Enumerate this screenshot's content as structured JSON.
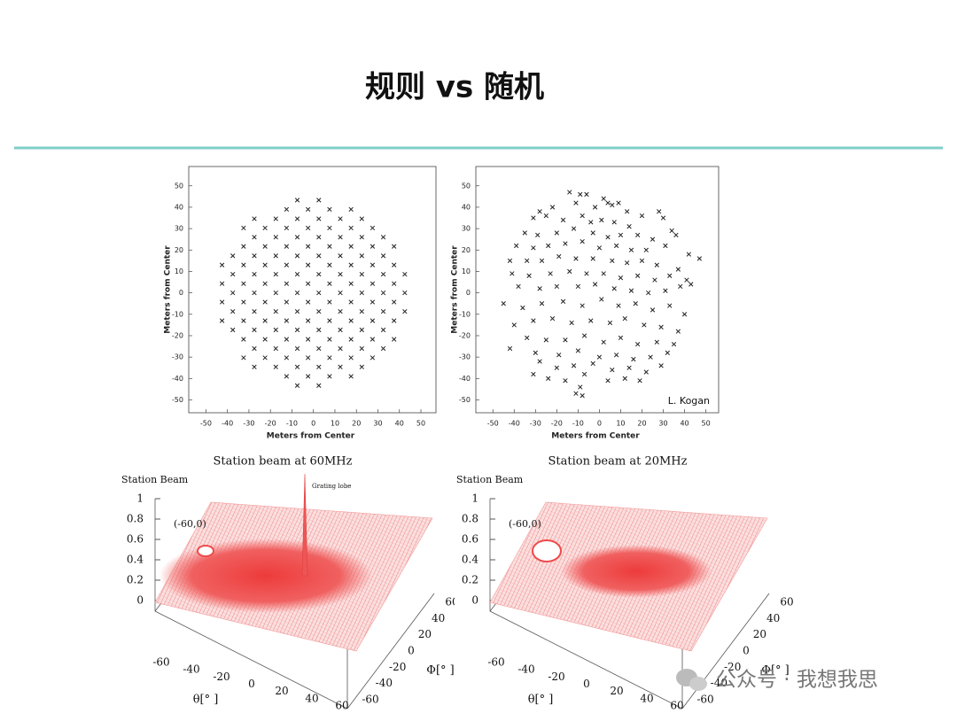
{
  "header": {
    "title": "规则 vs 随机"
  },
  "chart_data": [
    {
      "type": "scatter",
      "xlabel": "Meters from Center",
      "ylabel": "Meters from Center",
      "xlim": [
        -58,
        57
      ],
      "ylim": [
        -56,
        59
      ],
      "xticks": [
        -50,
        -40,
        -30,
        -20,
        -10,
        0,
        10,
        20,
        30,
        40,
        50
      ],
      "yticks": [
        -50,
        -40,
        -30,
        -20,
        -10,
        0,
        10,
        20,
        30,
        40,
        50
      ],
      "color": "#222222",
      "series": [
        {
          "columns": [
            {
              "x": -42.5,
              "y": [
                13,
                4.3,
                -4.3,
                -13
              ]
            },
            {
              "x": -37.5,
              "y": [
                17.3,
                8.7,
                0,
                -8.7,
                -17.3
              ]
            },
            {
              "x": -32.5,
              "y": [
                30.3,
                21.7,
                13,
                4.3,
                -4.3,
                -13,
                -21.7,
                -30.3
              ]
            },
            {
              "x": -27.5,
              "y": [
                34.6,
                26,
                17.3,
                8.7,
                0,
                -8.7,
                -17.3,
                -26,
                -34.6
              ]
            },
            {
              "x": -22.5,
              "y": [
                30.3,
                21.7,
                13,
                4.3,
                -4.3,
                -13,
                -21.7,
                -30.3
              ]
            },
            {
              "x": -17.5,
              "y": [
                34.6,
                26,
                17.3,
                8.7,
                0,
                -8.7,
                -17.3,
                -26,
                -34.6
              ]
            },
            {
              "x": -12.5,
              "y": [
                39,
                30.3,
                21.7,
                13,
                4.3,
                -4.3,
                -13,
                -21.7,
                -30.3,
                -39
              ]
            },
            {
              "x": -7.5,
              "y": [
                43.3,
                34.6,
                26,
                17.3,
                8.7,
                0,
                -8.7,
                -17.3,
                -26,
                -34.6,
                -43.3
              ]
            },
            {
              "x": -2.5,
              "y": [
                39,
                30.3,
                21.7,
                13,
                4.3,
                -4.3,
                -13,
                -21.7,
                -30.3,
                -39
              ]
            },
            {
              "x": 2.5,
              "y": [
                43.3,
                34.6,
                26,
                17.3,
                8.7,
                0,
                -8.7,
                -17.3,
                -26,
                -34.6,
                -43.3
              ]
            },
            {
              "x": 7.5,
              "y": [
                39,
                30.3,
                21.7,
                13,
                4.3,
                -4.3,
                -13,
                -21.7,
                -30.3,
                -39
              ]
            },
            {
              "x": 12.5,
              "y": [
                34.6,
                26,
                17.3,
                8.7,
                0,
                -8.7,
                -17.3,
                -26,
                -34.6
              ]
            },
            {
              "x": 17.5,
              "y": [
                39,
                30.3,
                21.7,
                13,
                4.3,
                -4.3,
                -13,
                -21.7,
                -30.3,
                -39
              ]
            },
            {
              "x": 22.5,
              "y": [
                34.6,
                26,
                17.3,
                8.7,
                0,
                -8.7,
                -17.3,
                -26,
                -34.6
              ]
            },
            {
              "x": 27.5,
              "y": [
                30.3,
                21.7,
                13,
                4.3,
                -4.3,
                -13,
                -21.7,
                -30.3
              ]
            },
            {
              "x": 32.5,
              "y": [
                26,
                17.3,
                8.7,
                0,
                -8.7,
                -17.3,
                -26
              ]
            },
            {
              "x": 37.5,
              "y": [
                21.7,
                13,
                4.3,
                -4.3,
                -13,
                -21.7
              ]
            },
            {
              "x": 42.5,
              "y": [
                8.7,
                0,
                -8.7
              ]
            }
          ]
        }
      ]
    },
    {
      "type": "scatter",
      "xlabel": "Meters from Center",
      "ylabel": "Meters from Center",
      "annotation": "L. Kogan",
      "xlim": [
        -58,
        56
      ],
      "ylim": [
        -56,
        59
      ],
      "xticks": [
        -50,
        -40,
        -30,
        -20,
        -10,
        0,
        10,
        20,
        30,
        40,
        50
      ],
      "yticks": [
        -50,
        -40,
        -30,
        -20,
        -10,
        0,
        10,
        20,
        30,
        40,
        50
      ],
      "color": "#222222",
      "series": [
        {
          "x": [
            -14,
            -9,
            -6,
            -11,
            2,
            4,
            6,
            9,
            -2,
            -22,
            -28,
            -25,
            -31,
            13,
            20,
            28,
            -17,
            -8,
            -4,
            1,
            7,
            14,
            30,
            34,
            -35,
            -29,
            -20,
            -12,
            -3,
            4,
            10,
            18,
            25,
            36,
            -39,
            -31,
            -24,
            -16,
            -8,
            0,
            8,
            15,
            22,
            31,
            42,
            -42,
            -34,
            -27,
            -19,
            -11,
            -3,
            6,
            13,
            20,
            27,
            37,
            47,
            -41,
            -33,
            -23,
            -14,
            -6,
            2,
            10,
            18,
            26,
            33,
            41,
            -38,
            -28,
            -20,
            -10,
            -2,
            7,
            15,
            23,
            31,
            38,
            43,
            -45,
            -36,
            -27,
            -17,
            -8,
            1,
            9,
            17,
            25,
            33,
            40,
            -40,
            -31,
            -22,
            -13,
            -4,
            5,
            12,
            21,
            29,
            37,
            -34,
            -25,
            -16,
            -7,
            2,
            10,
            18,
            27,
            35,
            -42,
            -30,
            -19,
            -10,
            0,
            8,
            16,
            24,
            32,
            -28,
            -20,
            -12,
            -3,
            6,
            14,
            22,
            29,
            -31,
            -24,
            -16,
            -7,
            4,
            12,
            19,
            -9,
            -11,
            -8
          ],
          "y": [
            47,
            46,
            46,
            42,
            44,
            42,
            41,
            42,
            40,
            40,
            38,
            36,
            35,
            38,
            36,
            38,
            34,
            36,
            33,
            34,
            33,
            31,
            35,
            29,
            28,
            27,
            28,
            30,
            28,
            26,
            27,
            27,
            25,
            27,
            22,
            21,
            22,
            23,
            24,
            21,
            22,
            20,
            20,
            22,
            18,
            15,
            15,
            15,
            17,
            16,
            16,
            15,
            14,
            15,
            13,
            11,
            16,
            9,
            8,
            9,
            10,
            9,
            9,
            7,
            8,
            6,
            8,
            6,
            3,
            2,
            3,
            3,
            4,
            2,
            1,
            0,
            1,
            3,
            4,
            -5,
            -7,
            -5,
            -4,
            -6,
            -3,
            -6,
            -5,
            -8,
            -6,
            -10,
            -15,
            -13,
            -12,
            -14,
            -13,
            -14,
            -12,
            -15,
            -16,
            -18,
            -21,
            -22,
            -22,
            -20,
            -23,
            -21,
            -24,
            -23,
            -24,
            -26,
            -28,
            -29,
            -27,
            -30,
            -29,
            -31,
            -30,
            -28,
            -32,
            -35,
            -34,
            -33,
            -36,
            -35,
            -37,
            -34,
            -38,
            -40,
            -41,
            -38,
            -41,
            -40,
            -41,
            -44,
            -47,
            -48
          ]
        }
      ]
    }
  ],
  "beam_plots": [
    {
      "title": "Station beam at 60MHz",
      "zlabel": "Station Beam",
      "zticks": [
        0,
        0.2,
        0.4,
        0.6,
        0.8,
        1
      ],
      "annotation": "(-60,0)",
      "lobe_label": "Grating lobe",
      "theta_ticks": [
        -60,
        -40,
        -20,
        0,
        20,
        40,
        60
      ],
      "phi_ticks": [
        -60,
        -40,
        -20,
        0,
        20,
        40,
        60
      ],
      "theta_label": "θ[° ]",
      "phi_label": "Φ[° ]"
    },
    {
      "title": "Station beam at 20MHz",
      "zlabel": "Station Beam",
      "zticks": [
        0,
        0.2,
        0.4,
        0.6,
        0.8,
        1
      ],
      "annotation": "(-60,0)",
      "theta_ticks": [
        -60,
        -40,
        -20,
        0,
        20,
        40,
        60
      ],
      "phi_ticks": [
        -60,
        -40,
        -20,
        0,
        20,
        40,
        60
      ],
      "theta_label": "θ[° ]",
      "phi_label": "Φ[° ]"
    }
  ],
  "watermark": "公众号 · 我想我思"
}
